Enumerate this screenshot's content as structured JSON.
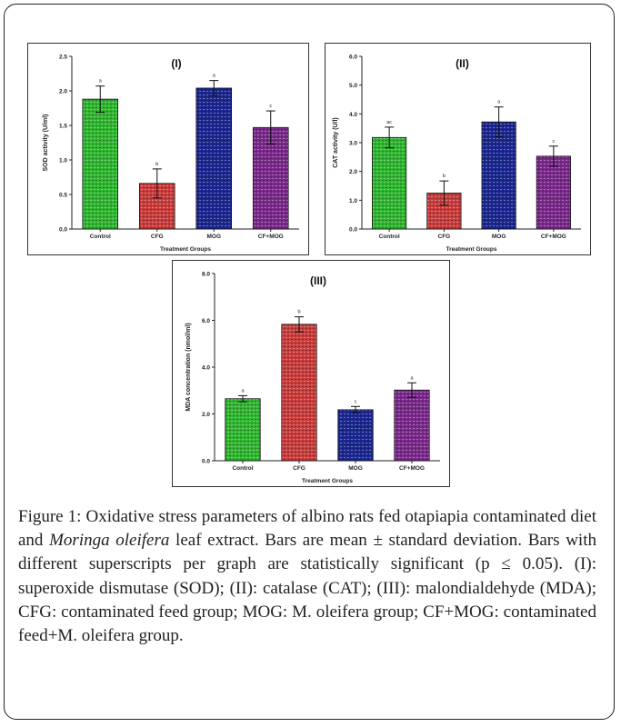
{
  "figure": {
    "caption_parts": [
      "Figure 1: Oxidative stress parameters of albino rats fed otapiapia contaminated diet and ",
      "Moringa oleifera",
      " leaf extract. Bars are mean ± standard deviation. Bars with different superscripts per graph are statistically significant (p ≤ 0.05). (I): superoxide dismutase (SOD); (II): catalase (CAT); (III): malondialdehyde (MDA); CFG: contaminated feed group; MOG: M. oleifera group; CF+MOG: contaminated feed+M. oleifera group."
    ]
  },
  "chart_data": [
    {
      "type": "bar",
      "title": "(I)",
      "xlabel": "Treatment Groups",
      "ylabel": "SOD activity (U/ml)",
      "categories": [
        "Control",
        "CFG",
        "MOG",
        "CF+MOG"
      ],
      "values": [
        1.88,
        0.66,
        2.04,
        1.47
      ],
      "errors": [
        0.19,
        0.21,
        0.11,
        0.24
      ],
      "superscripts": [
        "a",
        "b",
        "a",
        "c"
      ],
      "ylim": [
        0,
        2.5
      ],
      "yticks": [
        "0.0",
        "0.5",
        "1.0",
        "1.5",
        "2.0",
        "2.5"
      ],
      "colors": [
        "#2fb52f",
        "#c83c3c",
        "#1c2890",
        "#7a2a8a"
      ]
    },
    {
      "type": "bar",
      "title": "(II)",
      "xlabel": "Treatment Groups",
      "ylabel": "CAT activity (U/l)",
      "categories": [
        "Control",
        "CFG",
        "MOG",
        "CF+MOG"
      ],
      "values": [
        3.18,
        1.25,
        3.72,
        2.53
      ],
      "errors": [
        0.36,
        0.42,
        0.52,
        0.35
      ],
      "superscripts": [
        "ac",
        "b",
        "a",
        "c"
      ],
      "ylim": [
        0,
        6.0
      ],
      "yticks": [
        "0.0",
        "1.0",
        "2.0",
        "3.0",
        "4.0",
        "5.0",
        "6.0"
      ],
      "colors": [
        "#2fb52f",
        "#c83c3c",
        "#1c2890",
        "#7a2a8a"
      ]
    },
    {
      "type": "bar",
      "title": "(III)",
      "xlabel": "Treatment Groups",
      "ylabel": "MDA concentration (nmol/ml)",
      "categories": [
        "Control",
        "CFG",
        "MOG",
        "CF+MOG"
      ],
      "values": [
        2.65,
        5.83,
        2.18,
        3.02
      ],
      "errors": [
        0.13,
        0.32,
        0.14,
        0.31
      ],
      "superscripts": [
        "a",
        "b",
        "c",
        "a"
      ],
      "ylim": [
        0,
        8.0
      ],
      "yticks": [
        "0.0",
        "2.0",
        "4.0",
        "6.0",
        "8.0"
      ],
      "colors": [
        "#2fb52f",
        "#c83c3c",
        "#1c2890",
        "#7a2a8a"
      ]
    }
  ]
}
